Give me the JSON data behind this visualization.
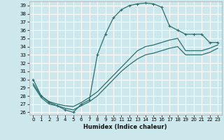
{
  "xlabel": "Humidex (Indice chaleur)",
  "bg_color": "#cce8ec",
  "grid_color": "#ffffff",
  "line_color": "#2d6e6e",
  "xlim": [
    -0.5,
    23.5
  ],
  "ylim": [
    25.7,
    39.5
  ],
  "yticks": [
    26,
    27,
    28,
    29,
    30,
    31,
    32,
    33,
    34,
    35,
    36,
    37,
    38,
    39
  ],
  "xticks": [
    0,
    1,
    2,
    3,
    4,
    5,
    6,
    7,
    8,
    9,
    10,
    11,
    12,
    13,
    14,
    15,
    16,
    17,
    18,
    19,
    20,
    21,
    22,
    23
  ],
  "line_with_markers": {
    "x": [
      0,
      1,
      2,
      3,
      4,
      5,
      6,
      7,
      8,
      9,
      10,
      11,
      12,
      13,
      14,
      15,
      16,
      17,
      18,
      19,
      20,
      21,
      22,
      23
    ],
    "y": [
      30.0,
      28.0,
      27.2,
      26.8,
      26.3,
      26.0,
      27.0,
      27.5,
      33.0,
      35.5,
      37.5,
      38.5,
      39.0,
      39.2,
      39.3,
      39.2,
      38.8,
      36.5,
      36.0,
      35.5,
      35.5,
      35.5,
      34.5,
      34.5
    ]
  },
  "line_upper": {
    "x": [
      0,
      1,
      2,
      3,
      4,
      5,
      6,
      7,
      8,
      9,
      10,
      11,
      12,
      13,
      14,
      15,
      16,
      17,
      18,
      19,
      20,
      21,
      22,
      23
    ],
    "y": [
      29.5,
      28.0,
      27.3,
      27.0,
      26.8,
      26.7,
      27.2,
      27.8,
      28.5,
      29.5,
      30.5,
      31.5,
      32.5,
      33.5,
      34.0,
      34.2,
      34.5,
      34.8,
      35.0,
      33.5,
      33.5,
      33.5,
      33.8,
      34.2
    ]
  },
  "line_lower": {
    "x": [
      0,
      1,
      2,
      3,
      4,
      5,
      6,
      7,
      8,
      9,
      10,
      11,
      12,
      13,
      14,
      15,
      16,
      17,
      18,
      19,
      20,
      21,
      22,
      23
    ],
    "y": [
      29.3,
      27.8,
      27.0,
      26.8,
      26.5,
      26.3,
      26.8,
      27.3,
      28.0,
      29.0,
      30.0,
      31.0,
      31.8,
      32.5,
      33.0,
      33.2,
      33.5,
      33.8,
      34.0,
      33.0,
      33.0,
      33.0,
      33.3,
      33.8
    ]
  },
  "xlabel_fontsize": 6,
  "tick_fontsize": 5,
  "linewidth": 0.9,
  "marker_size": 3.5
}
